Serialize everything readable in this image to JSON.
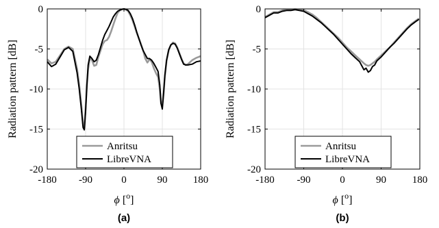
{
  "chart_data": [
    {
      "panel_label": "(a)",
      "type": "line",
      "xlabel": "ϕ [o]",
      "ylabel": "Radiation pattern [dB]",
      "xlim": [
        -180,
        180
      ],
      "ylim": [
        -20,
        0
      ],
      "xticks": [
        -180,
        -90,
        0,
        90,
        180
      ],
      "yticks": [
        0,
        -5,
        -10,
        -15,
        -20
      ],
      "grid": true,
      "legend_position": "bottom-center",
      "colors": {
        "Anritsu": "#9a9a9a",
        "LibreVNA": "#000000"
      },
      "series": [
        {
          "name": "Anritsu",
          "x": [
            -180,
            -170,
            -160,
            -150,
            -140,
            -130,
            -120,
            -110,
            -105,
            -100,
            -96,
            -93,
            -90,
            -87,
            -84,
            -80,
            -75,
            -70,
            -65,
            -60,
            -55,
            -50,
            -45,
            -40,
            -35,
            -30,
            -25,
            -20,
            -15,
            -10,
            -5,
            0,
            5,
            10,
            15,
            20,
            25,
            30,
            35,
            40,
            45,
            50,
            55,
            60,
            65,
            70,
            75,
            80,
            84,
            87,
            90,
            93,
            96,
            100,
            105,
            110,
            115,
            120,
            125,
            130,
            135,
            140,
            145,
            150,
            160,
            170,
            180
          ],
          "values": [
            -6.3,
            -6.8,
            -6.6,
            -5.8,
            -5.0,
            -4.7,
            -5.0,
            -7.5,
            -9.5,
            -12.0,
            -14.5,
            -14.9,
            -12.3,
            -9.5,
            -7.5,
            -6.2,
            -6.4,
            -7.1,
            -7.0,
            -6.0,
            -5.2,
            -4.4,
            -4.0,
            -3.9,
            -3.5,
            -2.8,
            -2.0,
            -1.2,
            -0.5,
            -0.2,
            -0.05,
            0,
            -0.1,
            -0.3,
            -0.8,
            -1.4,
            -2.2,
            -3.0,
            -3.7,
            -4.4,
            -5.2,
            -6.2,
            -6.7,
            -6.3,
            -6.6,
            -7.4,
            -8.0,
            -8.5,
            -10.0,
            -11.8,
            -12.0,
            -10.5,
            -8.5,
            -6.5,
            -5.2,
            -4.5,
            -4.2,
            -4.3,
            -4.8,
            -5.5,
            -6.2,
            -6.8,
            -7.0,
            -6.9,
            -6.4,
            -6.1,
            -5.9
          ]
        },
        {
          "name": "LibreVNA",
          "x": [
            -180,
            -170,
            -160,
            -150,
            -140,
            -130,
            -120,
            -110,
            -105,
            -100,
            -96,
            -93,
            -90,
            -87,
            -84,
            -80,
            -75,
            -70,
            -65,
            -60,
            -55,
            -50,
            -45,
            -40,
            -35,
            -30,
            -25,
            -20,
            -15,
            -10,
            -5,
            0,
            5,
            10,
            15,
            20,
            25,
            30,
            35,
            40,
            45,
            50,
            55,
            60,
            65,
            70,
            75,
            80,
            84,
            87,
            90,
            93,
            96,
            100,
            105,
            110,
            115,
            120,
            125,
            130,
            135,
            140,
            145,
            150,
            160,
            170,
            180
          ],
          "values": [
            -6.6,
            -7.2,
            -6.9,
            -6.0,
            -5.1,
            -4.8,
            -5.3,
            -8.0,
            -10.0,
            -12.5,
            -14.8,
            -15.1,
            -12.8,
            -9.5,
            -7.0,
            -5.9,
            -6.2,
            -6.6,
            -6.4,
            -5.7,
            -4.8,
            -3.9,
            -3.2,
            -2.7,
            -2.2,
            -1.6,
            -1.0,
            -0.6,
            -0.3,
            -0.15,
            -0.05,
            0,
            -0.05,
            -0.2,
            -0.6,
            -1.2,
            -2.0,
            -2.9,
            -3.7,
            -4.5,
            -5.2,
            -5.7,
            -6.2,
            -6.2,
            -6.4,
            -6.8,
            -7.3,
            -7.8,
            -9.5,
            -11.8,
            -12.5,
            -10.5,
            -8.3,
            -6.4,
            -5.1,
            -4.5,
            -4.3,
            -4.4,
            -4.9,
            -5.6,
            -6.3,
            -6.9,
            -7.0,
            -7.0,
            -6.9,
            -6.6,
            -6.5
          ]
        }
      ]
    },
    {
      "panel_label": "(b)",
      "type": "line",
      "xlabel": "ϕ [o]",
      "ylabel": "Radiation pattern [dB]",
      "xlim": [
        -180,
        180
      ],
      "ylim": [
        -20,
        0
      ],
      "xticks": [
        -180,
        -90,
        0,
        90,
        180
      ],
      "yticks": [
        0,
        -5,
        -10,
        -15,
        -20
      ],
      "grid": true,
      "legend_position": "bottom-center",
      "colors": {
        "Anritsu": "#9a9a9a",
        "LibreVNA": "#000000"
      },
      "series": [
        {
          "name": "Anritsu",
          "x": [
            -180,
            -170,
            -160,
            -150,
            -140,
            -130,
            -120,
            -110,
            -100,
            -90,
            -80,
            -70,
            -60,
            -50,
            -40,
            -30,
            -20,
            -10,
            0,
            10,
            20,
            30,
            40,
            50,
            55,
            60,
            65,
            70,
            75,
            80,
            90,
            100,
            110,
            120,
            130,
            140,
            150,
            160,
            170,
            178
          ],
          "values": [
            -1.0,
            -0.7,
            -0.4,
            -0.4,
            -0.2,
            -0.1,
            -0.1,
            -0.05,
            -0.1,
            -0.15,
            -0.4,
            -0.7,
            -1.1,
            -1.6,
            -2.1,
            -2.6,
            -3.1,
            -3.6,
            -4.2,
            -4.8,
            -5.3,
            -5.8,
            -6.3,
            -6.8,
            -7.0,
            -7.1,
            -7.0,
            -6.8,
            -6.6,
            -6.3,
            -5.8,
            -5.3,
            -4.8,
            -4.2,
            -3.6,
            -3.0,
            -2.4,
            -1.9,
            -1.5,
            -1.2
          ]
        },
        {
          "name": "LibreVNA",
          "x": [
            -180,
            -170,
            -160,
            -150,
            -140,
            -130,
            -120,
            -110,
            -100,
            -90,
            -80,
            -70,
            -60,
            -50,
            -40,
            -30,
            -20,
            -10,
            0,
            10,
            20,
            30,
            40,
            45,
            50,
            55,
            60,
            65,
            70,
            75,
            80,
            90,
            100,
            110,
            120,
            130,
            140,
            150,
            160,
            170,
            178
          ],
          "values": [
            -1.1,
            -0.8,
            -0.5,
            -0.5,
            -0.3,
            -0.2,
            -0.2,
            -0.1,
            -0.2,
            -0.3,
            -0.6,
            -0.9,
            -1.3,
            -1.7,
            -2.2,
            -2.7,
            -3.2,
            -3.8,
            -4.4,
            -5.0,
            -5.6,
            -6.1,
            -6.6,
            -7.1,
            -7.6,
            -7.4,
            -7.9,
            -7.7,
            -7.2,
            -7.0,
            -6.5,
            -6.0,
            -5.4,
            -4.8,
            -4.3,
            -3.7,
            -3.1,
            -2.5,
            -2.0,
            -1.6,
            -1.3
          ]
        }
      ]
    }
  ]
}
